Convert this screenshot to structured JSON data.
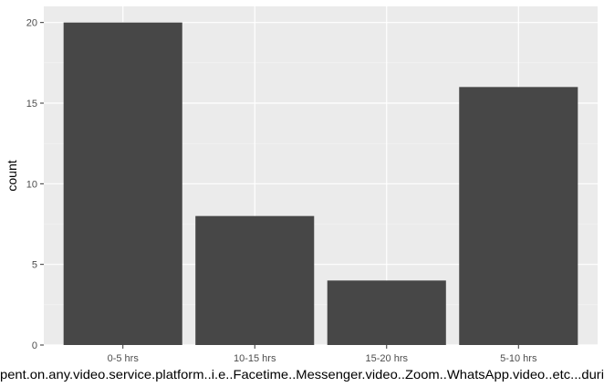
{
  "chart_data": {
    "type": "bar",
    "categories": [
      "0-5 hrs",
      "10-15 hrs",
      "15-20 hrs",
      "5-10 hrs"
    ],
    "values": [
      20,
      8,
      4,
      16
    ],
    "title": "",
    "xlabel": "pent.on.any.video.service.platform..i.e..Facetime..Messenger.video..Zoom..WhatsApp.video..etc...duri",
    "ylabel": "count",
    "ylim": [
      0,
      21
    ],
    "yticks": [
      0,
      5,
      10,
      15,
      20
    ],
    "grid": true,
    "legend": "none",
    "colors": {
      "bar": "#474747",
      "panel": "#ebebeb",
      "grid_major": "#ffffff",
      "grid_minor": "#f5f5f5",
      "tick_text": "#4d4d4d",
      "tick_mark": "#333333"
    }
  }
}
